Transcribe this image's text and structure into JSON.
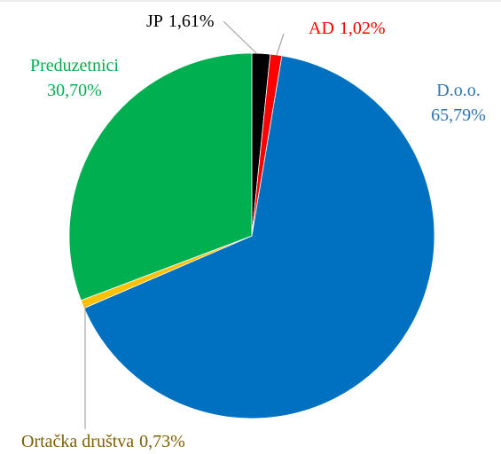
{
  "chart_data": {
    "type": "pie",
    "categories": [
      "JP",
      "AD",
      "D.o.o.",
      "Ortačka društva",
      "Preduzetnici"
    ],
    "values": [
      1.61,
      1.02,
      65.79,
      0.73,
      30.7
    ],
    "value_labels": [
      "1,61%",
      "1,02%",
      "65,79%",
      "0,73%",
      "30,70%"
    ],
    "colors": [
      "#000000",
      "#ff0000",
      "#0070c0",
      "#ffc000",
      "#00b050"
    ],
    "label_colors": [
      "#000000",
      "#ff0000",
      "#2e75b6",
      "#7f6000",
      "#00b050"
    ]
  }
}
